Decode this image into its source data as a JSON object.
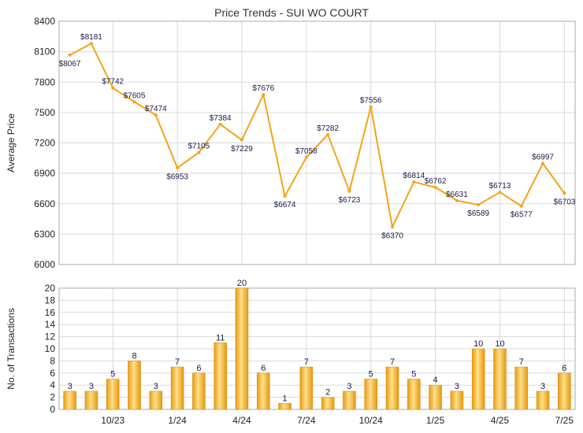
{
  "chart_data": [
    {
      "type": "line",
      "title": "Price Trends - SUI WO COURT",
      "ylabel": "Average Price",
      "ylim": [
        6000,
        8400
      ],
      "yticks": [
        6000,
        6300,
        6600,
        6900,
        7200,
        7500,
        7800,
        8100,
        8400
      ],
      "series": [
        {
          "values": [
            8067,
            8181,
            7742,
            7605,
            7474,
            6953,
            7105,
            7384,
            7229,
            7676,
            6674,
            7058,
            7282,
            6723,
            7556,
            6370,
            6814,
            6762,
            6631,
            6589,
            6713,
            6577,
            6997,
            6703
          ],
          "labels": [
            "$8067",
            "$8181",
            "$7742",
            "$7605",
            "$7474",
            "$6953",
            "$7105",
            "$7384",
            "$7229",
            "$7676",
            "$6674",
            "$7058",
            "$7282",
            "$6723",
            "$7556",
            "$6370",
            "$6814",
            "$6762",
            "$6631",
            "$6589",
            "$6713",
            "$6577",
            "$6997",
            "$6703"
          ],
          "color": "#f5a31a"
        }
      ],
      "grid": true
    },
    {
      "type": "bar",
      "ylabel": "No. of Transactions",
      "ylim": [
        0,
        20
      ],
      "yticks": [
        0,
        2,
        4,
        6,
        8,
        10,
        12,
        14,
        16,
        18,
        20
      ],
      "x_tick_labels": [
        "10/23",
        "1/24",
        "4/24",
        "7/24",
        "10/24",
        "1/25",
        "4/25",
        "7/25"
      ],
      "x_tick_positions": [
        2.5,
        5.5,
        8.5,
        11.5,
        14.5,
        17.5,
        20.5,
        23.5
      ],
      "values": [
        3,
        3,
        5,
        8,
        3,
        7,
        6,
        11,
        20,
        6,
        1,
        7,
        2,
        3,
        5,
        7,
        5,
        4,
        3,
        10,
        10,
        7,
        3,
        6
      ],
      "color": "#f5a31a",
      "grid": true
    }
  ]
}
